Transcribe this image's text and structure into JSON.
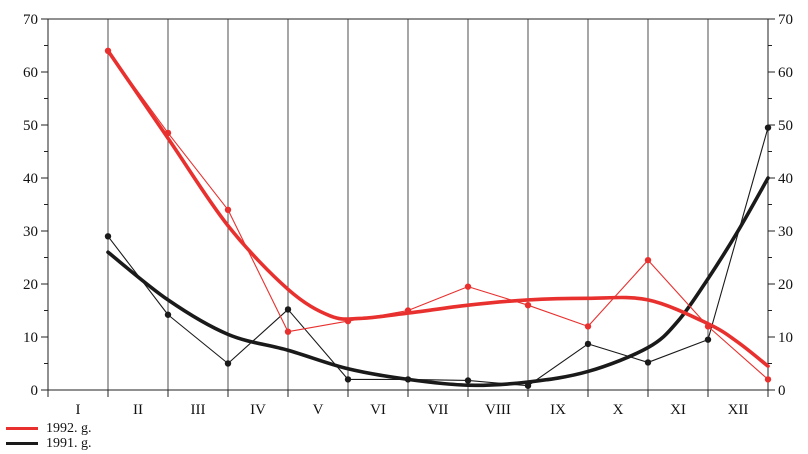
{
  "chart_data": {
    "type": "line",
    "title": "",
    "xlabel": "",
    "ylabel": "",
    "ylim": [
      0,
      70
    ],
    "yticks": [
      0,
      10,
      20,
      30,
      40,
      50,
      60,
      70
    ],
    "y_axis_right": true,
    "grid": "vertical",
    "categories": [
      "I",
      "II",
      "III",
      "IV",
      "V",
      "VI",
      "VII",
      "VIII",
      "IX",
      "X",
      "XI",
      "XII"
    ],
    "series": [
      {
        "name": "1992. g.",
        "color": "#e8312f",
        "x": [
          1,
          2,
          3,
          4,
          5,
          6,
          7,
          8,
          9,
          10,
          11,
          12
        ],
        "values": [
          64,
          48.5,
          34,
          11,
          13,
          15,
          19.5,
          16,
          12,
          24.5,
          12,
          2
        ],
        "trend": [
          [
            1,
            64
          ],
          [
            2,
            47.5
          ],
          [
            3,
            31
          ],
          [
            4,
            19
          ],
          [
            4.7,
            14
          ],
          [
            5.2,
            13.5
          ],
          [
            6,
            14.5
          ],
          [
            7,
            16
          ],
          [
            8,
            17
          ],
          [
            9,
            17.3
          ],
          [
            10,
            17
          ],
          [
            11,
            12.5
          ],
          [
            11.5,
            9
          ],
          [
            12,
            4.5
          ]
        ]
      },
      {
        "name": "1991. g.",
        "color": "#1a1a1a",
        "x": [
          1,
          2,
          3,
          4,
          5,
          6,
          7,
          8,
          9,
          10,
          11,
          12
        ],
        "values": [
          29,
          14.2,
          5,
          15.2,
          2,
          2,
          1.8,
          0.8,
          8.7,
          5.2,
          9.5,
          49.5
        ],
        "trend": [
          [
            1,
            26
          ],
          [
            2,
            17
          ],
          [
            3,
            10.5
          ],
          [
            4,
            7.5
          ],
          [
            5,
            4
          ],
          [
            6,
            2
          ],
          [
            7,
            0.9
          ],
          [
            8,
            1.5
          ],
          [
            9,
            3.5
          ],
          [
            10,
            8
          ],
          [
            10.5,
            13
          ],
          [
            11,
            21
          ],
          [
            11.5,
            30
          ],
          [
            12,
            40
          ]
        ]
      }
    ],
    "legend_position": "bottom-left"
  }
}
